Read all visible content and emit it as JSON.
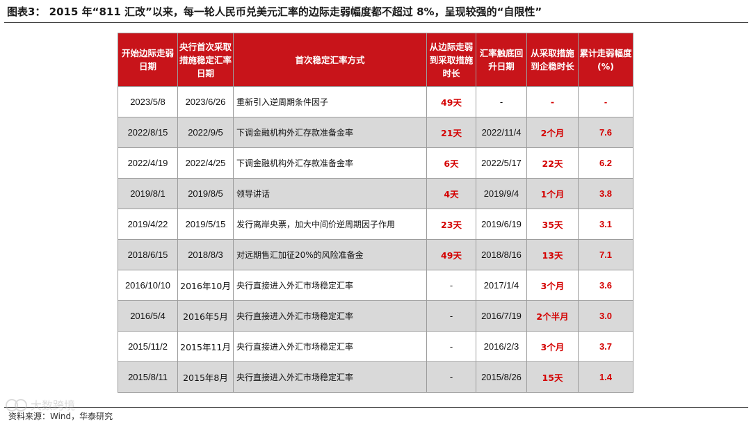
{
  "title": "图表3： 2015 年“811 汇改”以来，每一轮人民币兑美元汇率的边际走弱幅度都不超过 8%，呈现较强的“自限性”",
  "table": {
    "headers": [
      "开始边际走弱日期",
      "央行首次采取措施稳定汇率日期",
      "首次稳定汇率方式",
      "从边际走弱到采取措施时长",
      "汇率触底回升日期",
      "从采取措施到企稳时长",
      "累计走弱幅度(%)"
    ],
    "rows": [
      {
        "start": "2023/5/8",
        "action": "2023/6/26",
        "method": "重新引入逆周期条件因子",
        "to_action": "49天",
        "bottom": "-",
        "to_stable": "-",
        "depreciation": "-"
      },
      {
        "start": "2022/8/15",
        "action": "2022/9/5",
        "method": "下调金融机构外汇存款准备金率",
        "to_action": "21天",
        "bottom": "2022/11/4",
        "to_stable": "2个月",
        "depreciation": "7.6"
      },
      {
        "start": "2022/4/19",
        "action": "2022/4/25",
        "method": "下调金融机构外汇存款准备金率",
        "to_action": "6天",
        "bottom": "2022/5/17",
        "to_stable": "22天",
        "depreciation": "6.2"
      },
      {
        "start": "2019/8/1",
        "action": "2019/8/5",
        "method": "领导讲话",
        "to_action": "4天",
        "bottom": "2019/9/4",
        "to_stable": "1个月",
        "depreciation": "3.8"
      },
      {
        "start": "2019/4/22",
        "action": "2019/5/15",
        "method": "发行离岸央票，加大中间价逆周期因子作用",
        "to_action": "23天",
        "bottom": "2019/6/19",
        "to_stable": "35天",
        "depreciation": "3.1"
      },
      {
        "start": "2018/6/15",
        "action": "2018/8/3",
        "method": "对远期售汇加征20%的风险准备金",
        "to_action": "49天",
        "bottom": "2018/8/16",
        "to_stable": "13天",
        "depreciation": "7.1"
      },
      {
        "start": "2016/10/10",
        "action": "2016年10月",
        "method": "央行直接进入外汇市场稳定汇率",
        "to_action": "-",
        "bottom": "2017/1/4",
        "to_stable": "3个月",
        "depreciation": "3.6"
      },
      {
        "start": "2016/5/4",
        "action": "2016年5月",
        "method": "央行直接进入外汇市场稳定汇率",
        "to_action": "-",
        "bottom": "2016/7/19",
        "to_stable": "2个半月",
        "depreciation": "3.0"
      },
      {
        "start": "2015/11/2",
        "action": "2015年11月",
        "method": "央行直接进入外汇市场稳定汇率",
        "to_action": "-",
        "bottom": "2016/2/3",
        "to_stable": "3个月",
        "depreciation": "3.7"
      },
      {
        "start": "2015/8/11",
        "action": "2015年8月",
        "method": "央行直接进入外汇市场稳定汇率",
        "to_action": "-",
        "bottom": "2015/8/26",
        "to_stable": "15天",
        "depreciation": "1.4"
      }
    ]
  },
  "source": "资料来源：Wind，华泰研究",
  "watermark": "大数跨境",
  "colors": {
    "header_bg": "#c8141a",
    "header_text": "#ffffff",
    "highlight_text": "#d40000",
    "shaded_row": "#d9d9d9"
  }
}
